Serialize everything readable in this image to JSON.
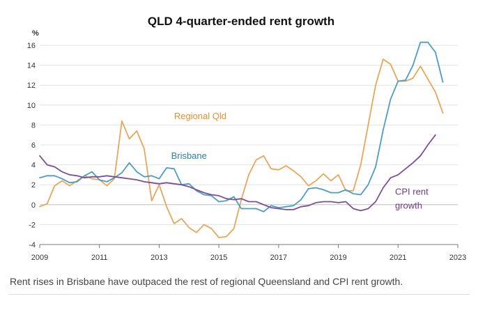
{
  "chart_data": {
    "type": "line",
    "title": "QLD 4-quarter-ended rent growth",
    "ylabel": "%",
    "xlabel": "",
    "xlim": [
      2009,
      2023
    ],
    "ylim": [
      -4,
      16
    ],
    "yticks": [
      "-4",
      "-2",
      "0",
      "2",
      "4",
      "6",
      "8",
      "10",
      "12",
      "14",
      "16"
    ],
    "xticks": [
      "2009",
      "2011",
      "2013",
      "2015",
      "2017",
      "2019",
      "2021",
      "2023"
    ],
    "grid": "horizontal",
    "series": [
      {
        "name": "Regional Qld",
        "color": "#E8A65A",
        "x": [
          2009.0,
          2009.25,
          2009.5,
          2009.75,
          2010.0,
          2010.25,
          2010.5,
          2010.75,
          2011.0,
          2011.25,
          2011.5,
          2011.75,
          2012.0,
          2012.25,
          2012.5,
          2012.75,
          2013.0,
          2013.25,
          2013.5,
          2013.75,
          2014.0,
          2014.25,
          2014.5,
          2014.75,
          2015.0,
          2015.25,
          2015.5,
          2015.75,
          2016.0,
          2016.25,
          2016.5,
          2016.75,
          2017.0,
          2017.25,
          2017.5,
          2017.75,
          2018.0,
          2018.25,
          2018.5,
          2018.75,
          2019.0,
          2019.25,
          2019.5,
          2019.75,
          2020.0,
          2020.25,
          2020.5,
          2020.75,
          2021.0,
          2021.25,
          2021.5,
          2021.75,
          2022.0,
          2022.25,
          2022.5
        ],
        "values": [
          -0.2,
          0.1,
          1.9,
          2.4,
          1.9,
          2.4,
          2.9,
          2.6,
          2.5,
          1.9,
          2.6,
          8.4,
          6.6,
          7.4,
          5.6,
          0.4,
          2.0,
          -0.2,
          -1.9,
          -1.4,
          -2.3,
          -2.8,
          -2.0,
          -2.4,
          -3.3,
          -3.2,
          -2.4,
          0.5,
          3.0,
          4.5,
          4.9,
          3.6,
          3.5,
          3.9,
          3.4,
          2.8,
          1.9,
          2.4,
          3.1,
          2.4,
          3.0,
          1.4,
          1.4,
          4.0,
          8.0,
          12.0,
          14.6,
          14.1,
          12.4,
          12.4,
          12.7,
          13.9,
          12.6,
          11.3,
          9.2
        ]
      },
      {
        "name": "Brisbane",
        "color": "#4A9DC5",
        "x": [
          2009.0,
          2009.25,
          2009.5,
          2009.75,
          2010.0,
          2010.25,
          2010.5,
          2010.75,
          2011.0,
          2011.25,
          2011.5,
          2011.75,
          2012.0,
          2012.25,
          2012.5,
          2012.75,
          2013.0,
          2013.25,
          2013.5,
          2013.75,
          2014.0,
          2014.25,
          2014.5,
          2014.75,
          2015.0,
          2015.25,
          2015.5,
          2015.75,
          2016.0,
          2016.25,
          2016.5,
          2016.75,
          2017.0,
          2017.25,
          2017.5,
          2017.75,
          2018.0,
          2018.25,
          2018.5,
          2018.75,
          2019.0,
          2019.25,
          2019.5,
          2019.75,
          2020.0,
          2020.25,
          2020.5,
          2020.75,
          2021.0,
          2021.25,
          2021.5,
          2021.75,
          2022.0,
          2022.25,
          2022.5
        ],
        "values": [
          2.7,
          2.9,
          2.9,
          2.6,
          2.2,
          2.3,
          2.9,
          3.3,
          2.5,
          2.3,
          2.7,
          3.2,
          4.2,
          3.3,
          2.8,
          2.9,
          2.6,
          3.7,
          3.6,
          2.0,
          2.1,
          1.4,
          1.0,
          0.9,
          0.3,
          0.4,
          0.8,
          -0.4,
          -0.4,
          -0.4,
          -0.7,
          -0.1,
          -0.3,
          -0.2,
          -0.1,
          0.5,
          1.6,
          1.7,
          1.5,
          1.2,
          1.2,
          1.5,
          1.1,
          1.0,
          2.0,
          3.8,
          7.5,
          10.6,
          12.4,
          12.5,
          14.0,
          16.3,
          16.3,
          15.3,
          12.3
        ]
      },
      {
        "name": "CPI rent growth",
        "color": "#7B4E93",
        "x": [
          2009.0,
          2009.25,
          2009.5,
          2009.75,
          2010.0,
          2010.25,
          2010.5,
          2010.75,
          2011.0,
          2011.25,
          2011.5,
          2011.75,
          2012.0,
          2012.25,
          2012.5,
          2012.75,
          2013.0,
          2013.25,
          2013.5,
          2013.75,
          2014.0,
          2014.25,
          2014.5,
          2014.75,
          2015.0,
          2015.25,
          2015.5,
          2015.75,
          2016.0,
          2016.25,
          2016.5,
          2016.75,
          2017.0,
          2017.25,
          2017.5,
          2017.75,
          2018.0,
          2018.25,
          2018.5,
          2018.75,
          2019.0,
          2019.25,
          2019.5,
          2019.75,
          2020.0,
          2020.25,
          2020.5,
          2020.75,
          2021.0,
          2021.25,
          2021.5,
          2021.75,
          2022.0,
          2022.25
        ],
        "values": [
          4.9,
          4.0,
          3.8,
          3.3,
          3.0,
          2.9,
          2.7,
          2.8,
          2.8,
          2.9,
          2.8,
          2.7,
          2.6,
          2.5,
          2.3,
          2.2,
          2.1,
          2.2,
          2.1,
          2.0,
          1.8,
          1.5,
          1.2,
          1.0,
          0.9,
          0.6,
          0.5,
          0.6,
          0.3,
          0.3,
          0.0,
          -0.3,
          -0.4,
          -0.5,
          -0.5,
          -0.2,
          -0.1,
          0.2,
          0.3,
          0.3,
          0.2,
          0.3,
          -0.4,
          -0.6,
          -0.4,
          0.3,
          1.7,
          2.7,
          3.0,
          3.6,
          4.2,
          4.9,
          6.0,
          7.0
        ]
      }
    ],
    "annotations": [
      {
        "text": "Regional Qld",
        "color": "#E2922E",
        "x": 2013.5,
        "y": 8.6
      },
      {
        "text": "Brisbane",
        "color": "#2F7EA8",
        "x": 2013.4,
        "y": 4.6
      },
      {
        "text": "CPI rent",
        "color": "#6B3A86",
        "x": 2020.9,
        "y": 1.0
      },
      {
        "text": "growth",
        "color": "#6B3A86",
        "x": 2020.9,
        "y": -0.4
      }
    ]
  },
  "caption": "Rent rises in Brisbane have outpaced the rest of regional Queensland and CPI rent growth."
}
